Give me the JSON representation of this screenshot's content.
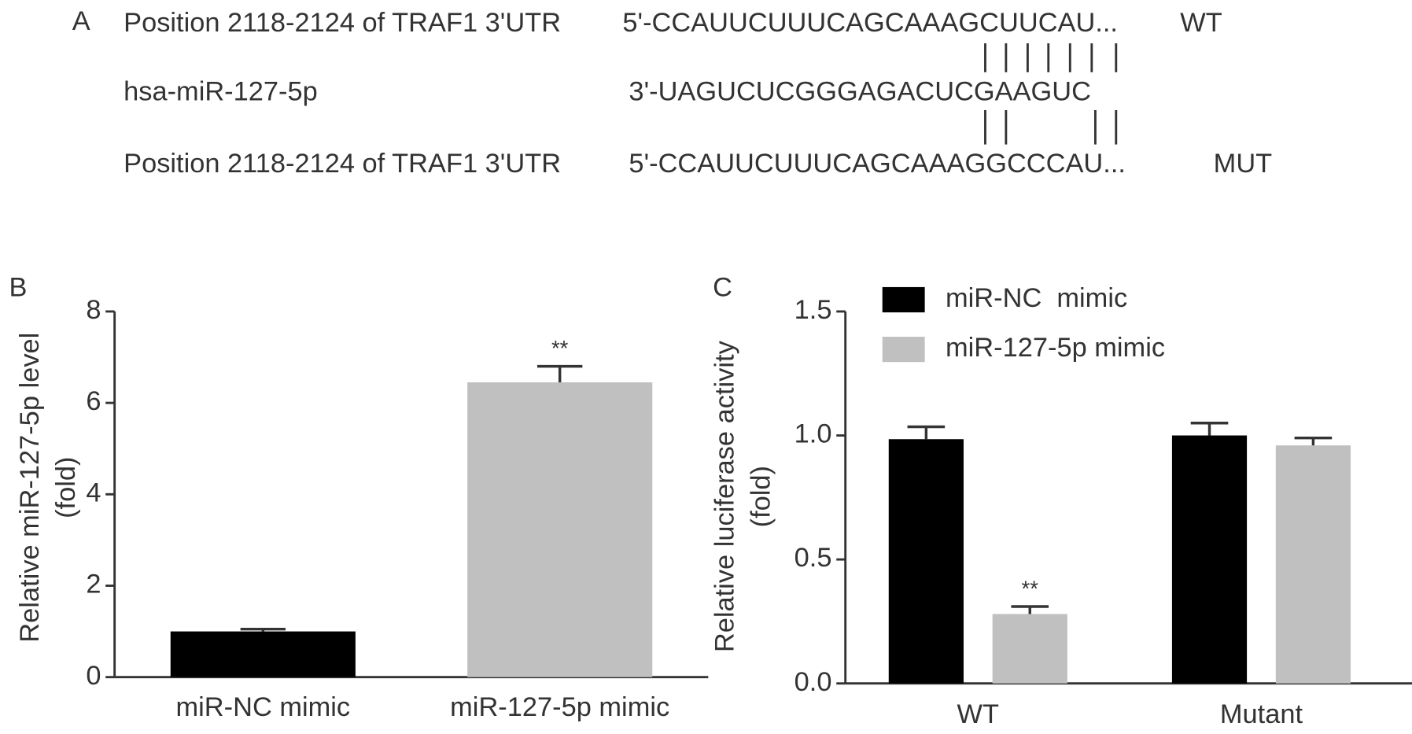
{
  "panel_a": {
    "label": "A",
    "rows": [
      {
        "label": "Position 2118-2124 of TRAF1 3'UTR",
        "sequence": "5'-CCAUUCUUUCAGCAAAGCUUCAU...",
        "tag": "WT"
      },
      {
        "label": "hsa-miR-127-5p",
        "sequence": "3'-UAGUCUCGGGAGACUCGAAGUC"
      },
      {
        "label": "Position 2118-2124 of TRAF1 3'UTR",
        "sequence": "5'-CCAUUCUUUCAGCAAAGGCCCAU...",
        "tag": "MUT"
      }
    ]
  },
  "chart_data": [
    {
      "type": "bar",
      "label": "B",
      "ylabel": [
        "Relative miR-127-5p level",
        "(fold)"
      ],
      "categories": [
        "miR-NC mimic",
        "miR-127-5p mimic"
      ],
      "values": [
        1.0,
        6.45
      ],
      "errors": [
        0.05,
        0.35
      ],
      "colors": [
        "#000000",
        "#c0c0c0"
      ],
      "annotations": [
        null,
        "**"
      ],
      "ylim": [
        0,
        8
      ],
      "yticks": [
        0,
        2,
        4,
        6,
        8
      ]
    },
    {
      "type": "grouped-bar",
      "label": "C",
      "ylabel": [
        "Relative luciferase activity",
        "(fold)"
      ],
      "categories": [
        "WT",
        "Mutant"
      ],
      "series": [
        {
          "name": "miR-NC  mimic",
          "color": "#000000",
          "values": [
            0.985,
            1.0
          ],
          "errors": [
            0.05,
            0.05
          ],
          "annotations": [
            null,
            null
          ]
        },
        {
          "name": "miR-127-5p mimic",
          "color": "#c0c0c0",
          "values": [
            0.28,
            0.96
          ],
          "errors": [
            0.03,
            0.03
          ],
          "annotations": [
            "**",
            null
          ]
        }
      ],
      "ylim": [
        0,
        1.5
      ],
      "yticks": [
        {
          "value": 0,
          "label": "0.0"
        },
        0.5,
        {
          "value": 1,
          "label": "1.0"
        },
        1.5
      ],
      "legend": "top-left"
    }
  ]
}
